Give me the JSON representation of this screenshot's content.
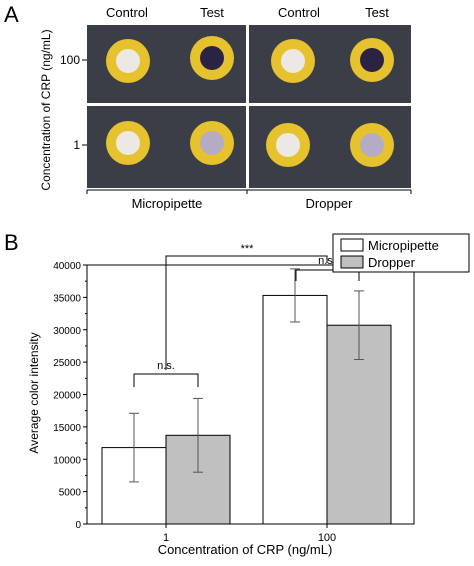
{
  "panel_a": {
    "label": "A",
    "column_headers": [
      "Control",
      "Test",
      "Control",
      "Test"
    ],
    "row_labels": [
      "100",
      "1"
    ],
    "ylabel": "Concentration of CRP (ng/mL)",
    "group_labels": [
      "Micropipette",
      "Dropper"
    ],
    "colors": {
      "tile": "#3b3e47",
      "ring": "#e6c22e",
      "white_spot": "#ece9e4",
      "dark_spot": "#2b2344",
      "light_spot": "#b6abc4",
      "divider": "#ffffff"
    }
  },
  "panel_b": {
    "label": "B",
    "significance": [
      "***",
      "n.s.",
      "n.s."
    ]
  },
  "chart_data": {
    "type": "bar",
    "categories": [
      "1",
      "100"
    ],
    "series": [
      {
        "name": "Micropipette",
        "values": [
          11800,
          35300
        ],
        "errors": [
          5300,
          4100
        ],
        "color": "#ffffff"
      },
      {
        "name": "Dropper",
        "values": [
          13700,
          30700
        ],
        "errors": [
          5700,
          5300
        ],
        "color": "#c0c0c0"
      }
    ],
    "xlabel": "Concentration of CRP (ng/mL)",
    "ylabel": "Average color intensity",
    "ylim": [
      0,
      40000
    ],
    "yticks": [
      "0",
      "5000",
      "10000",
      "15000",
      "20000",
      "25000",
      "30000",
      "35000",
      "40000"
    ],
    "legend": "top-right",
    "grid": false
  }
}
